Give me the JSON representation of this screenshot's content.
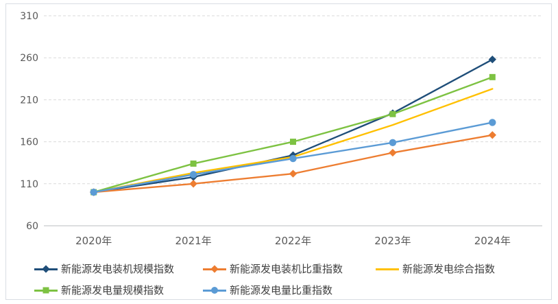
{
  "chart_data": {
    "type": "line",
    "title": "",
    "xlabel": "",
    "ylabel": "",
    "x": [
      "2020年",
      "2021年",
      "2022年",
      "2023年",
      "2024年"
    ],
    "ylim": [
      60,
      310
    ],
    "yticks": [
      60,
      110,
      160,
      210,
      260,
      310
    ],
    "grid": true,
    "gridline_style": "dashed",
    "legend_position": "bottom-left",
    "series": [
      {
        "name": "新能源发电装机规模指数",
        "color": "#1f4e79",
        "marker": "diamond",
        "values": [
          100,
          118,
          144,
          194,
          258
        ]
      },
      {
        "name": "新能源发电装机比重指数",
        "color": "#ed7d31",
        "marker": "diamond",
        "values": [
          100,
          110,
          122,
          147,
          168
        ]
      },
      {
        "name": "新能源发电综合指数",
        "color": "#ffc000",
        "marker": "none",
        "values": [
          100,
          123,
          142,
          180,
          223
        ]
      },
      {
        "name": "新能源发电量规模指数",
        "color": "#7dc242",
        "marker": "square",
        "values": [
          100,
          134,
          160,
          193,
          237
        ]
      },
      {
        "name": "新能源发电量比重指数",
        "color": "#5b9bd5",
        "marker": "circle",
        "values": [
          100,
          121,
          140,
          159,
          183
        ]
      }
    ]
  },
  "style": {
    "axis_label_color": "#595959",
    "gridline_color": "#d9d9d9",
    "axis_line_color": "#c6c9cc",
    "frame_border_color": "#d9dde3",
    "background": "#ffffff"
  }
}
